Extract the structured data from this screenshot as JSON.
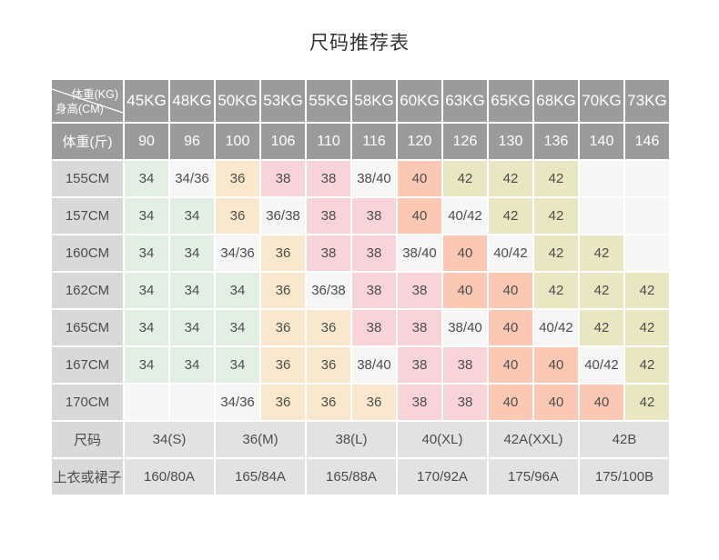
{
  "title": "尺码推荐表",
  "table": {
    "corner": {
      "top_right": "体重(KG)",
      "bottom_left": "身高(CM)"
    },
    "weight_kg_headers": [
      "45KG",
      "48KG",
      "50KG",
      "53KG",
      "55KG",
      "58KG",
      "60KG",
      "63KG",
      "65KG",
      "68KG",
      "70KG",
      "73KG"
    ],
    "jin_label": "体重(斤)",
    "jin_values": [
      "90",
      "96",
      "100",
      "106",
      "110",
      "116",
      "120",
      "126",
      "130",
      "136",
      "140",
      "146"
    ],
    "height_rows": [
      {
        "height": "155CM",
        "cells": [
          {
            "v": "34",
            "c": "g"
          },
          {
            "v": "34/36",
            "c": "w"
          },
          {
            "v": "36",
            "c": "p"
          },
          {
            "v": "38",
            "c": "k"
          },
          {
            "v": "38",
            "c": "k"
          },
          {
            "v": "38/40",
            "c": "w"
          },
          {
            "v": "40",
            "c": "s"
          },
          {
            "v": "42",
            "c": "y"
          },
          {
            "v": "42",
            "c": "y"
          },
          {
            "v": "42",
            "c": "y"
          },
          {
            "v": "",
            "c": "e"
          },
          {
            "v": "",
            "c": "e"
          }
        ]
      },
      {
        "height": "157CM",
        "cells": [
          {
            "v": "34",
            "c": "g"
          },
          {
            "v": "34",
            "c": "g"
          },
          {
            "v": "36",
            "c": "p"
          },
          {
            "v": "36/38",
            "c": "w"
          },
          {
            "v": "38",
            "c": "k"
          },
          {
            "v": "38",
            "c": "k"
          },
          {
            "v": "40",
            "c": "s"
          },
          {
            "v": "40/42",
            "c": "w"
          },
          {
            "v": "42",
            "c": "y"
          },
          {
            "v": "42",
            "c": "y"
          },
          {
            "v": "",
            "c": "e"
          },
          {
            "v": "",
            "c": "e"
          }
        ]
      },
      {
        "height": "160CM",
        "cells": [
          {
            "v": "34",
            "c": "g"
          },
          {
            "v": "34",
            "c": "g"
          },
          {
            "v": "34/36",
            "c": "w"
          },
          {
            "v": "36",
            "c": "p"
          },
          {
            "v": "38",
            "c": "k"
          },
          {
            "v": "38",
            "c": "k"
          },
          {
            "v": "38/40",
            "c": "w"
          },
          {
            "v": "40",
            "c": "s"
          },
          {
            "v": "40/42",
            "c": "w"
          },
          {
            "v": "42",
            "c": "y"
          },
          {
            "v": "42",
            "c": "y"
          },
          {
            "v": "",
            "c": "e"
          }
        ]
      },
      {
        "height": "162CM",
        "cells": [
          {
            "v": "34",
            "c": "g"
          },
          {
            "v": "34",
            "c": "g"
          },
          {
            "v": "34",
            "c": "g"
          },
          {
            "v": "36",
            "c": "p"
          },
          {
            "v": "36/38",
            "c": "w"
          },
          {
            "v": "38",
            "c": "k"
          },
          {
            "v": "38",
            "c": "k"
          },
          {
            "v": "40",
            "c": "s"
          },
          {
            "v": "40",
            "c": "s"
          },
          {
            "v": "42",
            "c": "y"
          },
          {
            "v": "42",
            "c": "y"
          },
          {
            "v": "42",
            "c": "y"
          }
        ]
      },
      {
        "height": "165CM",
        "cells": [
          {
            "v": "34",
            "c": "g"
          },
          {
            "v": "34",
            "c": "g"
          },
          {
            "v": "34",
            "c": "g"
          },
          {
            "v": "36",
            "c": "p"
          },
          {
            "v": "36",
            "c": "p"
          },
          {
            "v": "38",
            "c": "k"
          },
          {
            "v": "38",
            "c": "k"
          },
          {
            "v": "38/40",
            "c": "w"
          },
          {
            "v": "40",
            "c": "s"
          },
          {
            "v": "40/42",
            "c": "w"
          },
          {
            "v": "42",
            "c": "y"
          },
          {
            "v": "42",
            "c": "y"
          }
        ]
      },
      {
        "height": "167CM",
        "cells": [
          {
            "v": "34",
            "c": "g"
          },
          {
            "v": "34",
            "c": "g"
          },
          {
            "v": "34",
            "c": "g"
          },
          {
            "v": "36",
            "c": "p"
          },
          {
            "v": "36",
            "c": "p"
          },
          {
            "v": "38/40",
            "c": "w"
          },
          {
            "v": "38",
            "c": "k"
          },
          {
            "v": "38",
            "c": "k"
          },
          {
            "v": "40",
            "c": "s"
          },
          {
            "v": "40",
            "c": "s"
          },
          {
            "v": "40/42",
            "c": "w"
          },
          {
            "v": "42",
            "c": "y"
          }
        ]
      },
      {
        "height": "170CM",
        "cells": [
          {
            "v": "",
            "c": "e"
          },
          {
            "v": "",
            "c": "e"
          },
          {
            "v": "34/36",
            "c": "w"
          },
          {
            "v": "36",
            "c": "p"
          },
          {
            "v": "36",
            "c": "p"
          },
          {
            "v": "36",
            "c": "p"
          },
          {
            "v": "38",
            "c": "k"
          },
          {
            "v": "38",
            "c": "k"
          },
          {
            "v": "40",
            "c": "s"
          },
          {
            "v": "40",
            "c": "s"
          },
          {
            "v": "40",
            "c": "s"
          },
          {
            "v": "42",
            "c": "y"
          }
        ]
      }
    ],
    "size_row": {
      "label": "尺码",
      "values": [
        "34(S)",
        "36(M)",
        "38(L)",
        "40(XL)",
        "42A(XXL)",
        "42B"
      ]
    },
    "garment_row": {
      "label": "上衣或裙子",
      "values": [
        "160/80A",
        "165/84A",
        "165/88A",
        "170/92A",
        "175/96A",
        "175/100B"
      ]
    }
  },
  "colors": {
    "header_bg": "#9b9b9b",
    "header_text": "#ffffff",
    "label_bg": "#d9d9d9",
    "footer_bg": "#e2e2e2",
    "green": "#e3efe4",
    "peach": "#fae8ce",
    "pink": "#f8d4da",
    "salmon": "#fbc9b3",
    "khaki": "#e9e7c1",
    "neutral": "#f6f6f6"
  }
}
